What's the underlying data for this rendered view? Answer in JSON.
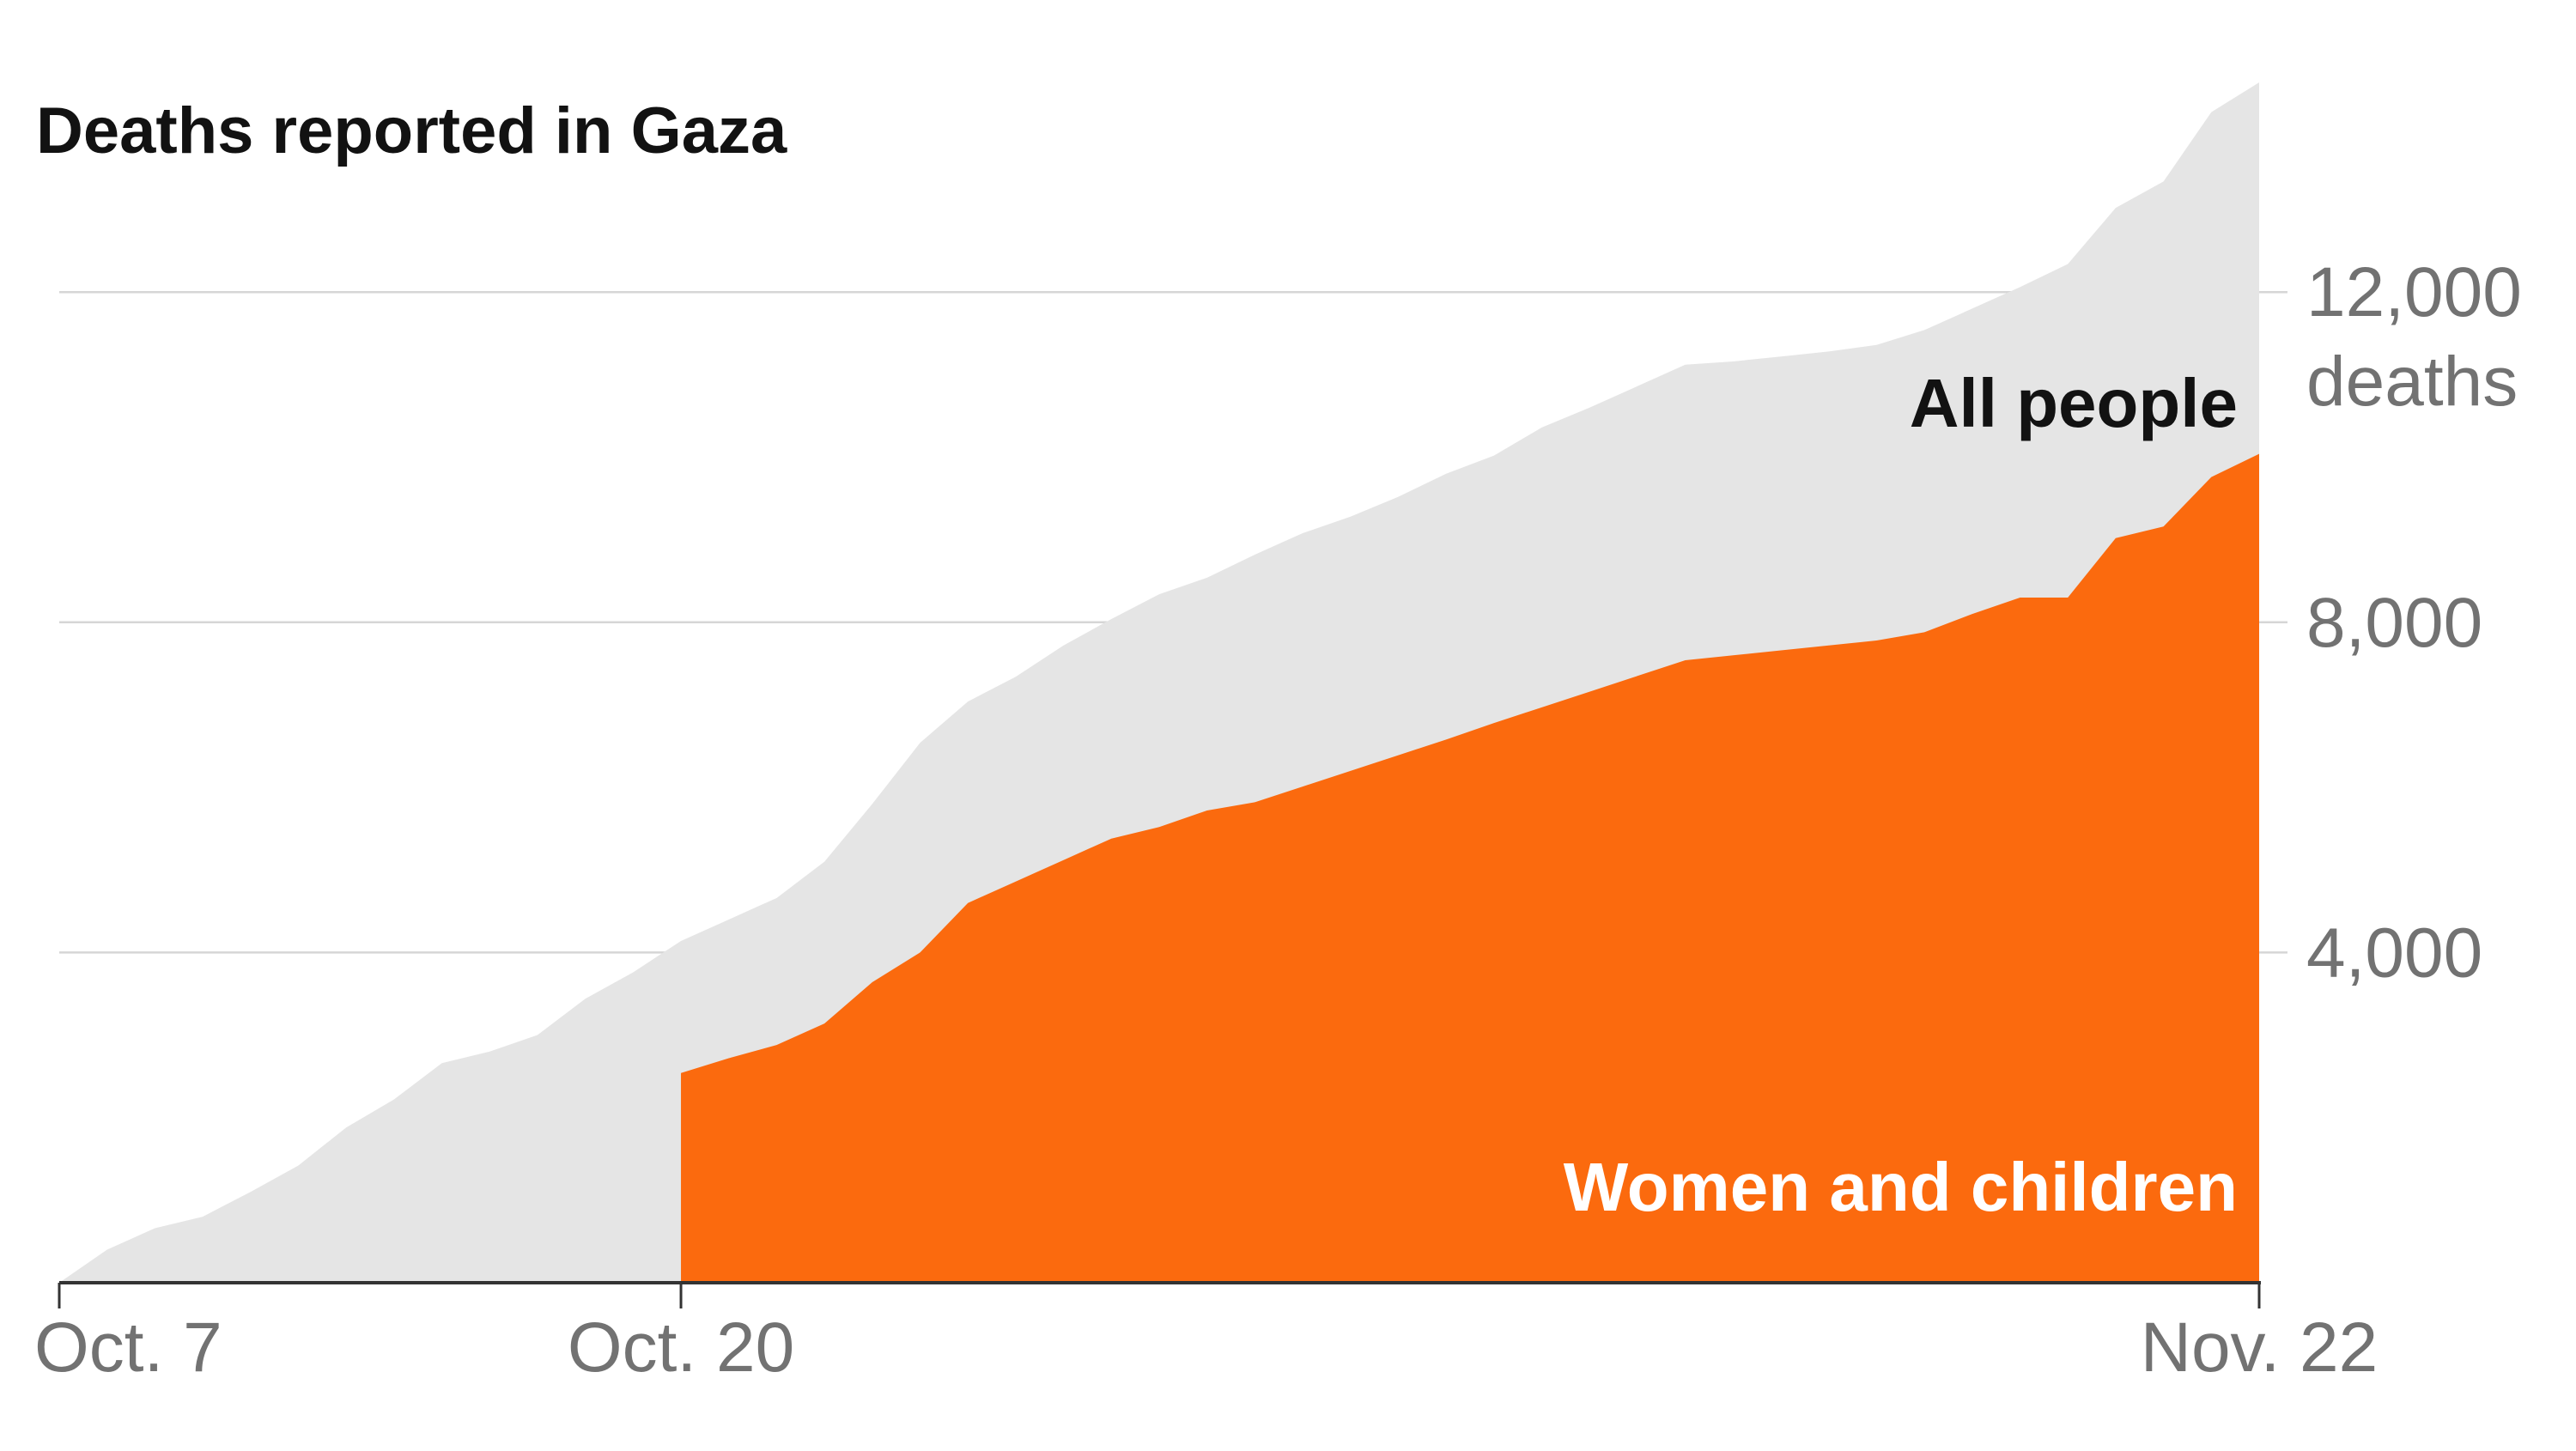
{
  "chart_data": {
    "type": "area",
    "title": "Deaths reported in Gaza",
    "xlabel": "",
    "ylabel": "deaths",
    "ylim": [
      0,
      14540
    ],
    "y_ticks": [
      {
        "value": 4000,
        "label": "4,000"
      },
      {
        "value": 8000,
        "label": "8,000"
      },
      {
        "value": 12000,
        "label": "12,000"
      }
    ],
    "y_unit_label": "deaths",
    "x_ticks": [
      {
        "date": "Oct. 7",
        "label": "Oct. 7"
      },
      {
        "date": "Oct. 20",
        "label": "Oct. 20"
      },
      {
        "date": "Nov. 22",
        "label": "Nov. 22"
      }
    ],
    "grid": true,
    "x": [
      "Oct. 7",
      "Oct. 8",
      "Oct. 9",
      "Oct. 10",
      "Oct. 11",
      "Oct. 12",
      "Oct. 13",
      "Oct. 14",
      "Oct. 15",
      "Oct. 16",
      "Oct. 17",
      "Oct. 18",
      "Oct. 19",
      "Oct. 20",
      "Oct. 21",
      "Oct. 22",
      "Oct. 23",
      "Oct. 24",
      "Oct. 25",
      "Oct. 26",
      "Oct. 27",
      "Oct. 28",
      "Oct. 29",
      "Oct. 30",
      "Oct. 31",
      "Nov. 1",
      "Nov. 2",
      "Nov. 3",
      "Nov. 4",
      "Nov. 5",
      "Nov. 6",
      "Nov. 7",
      "Nov. 8",
      "Nov. 9",
      "Nov. 10",
      "Nov. 11",
      "Nov. 12",
      "Nov. 13",
      "Nov. 14",
      "Nov. 15",
      "Nov. 16",
      "Nov. 17",
      "Nov. 18",
      "Nov. 19",
      "Nov. 20",
      "Nov. 21",
      "Nov. 22"
    ],
    "series": [
      {
        "name": "All people",
        "color": "#e5e5e5",
        "label_color": "#121212",
        "values": [
          0,
          400,
          660,
          800,
          1100,
          1420,
          1880,
          2220,
          2660,
          2800,
          3000,
          3440,
          3760,
          4140,
          4400,
          4660,
          5100,
          5800,
          6540,
          7040,
          7340,
          7720,
          8040,
          8340,
          8540,
          8820,
          9080,
          9280,
          9520,
          9800,
          10020,
          10360,
          10600,
          10860,
          11120,
          11160,
          11220,
          11280,
          11360,
          11540,
          11800,
          12060,
          12340,
          13020,
          13340,
          14180,
          14540
        ]
      },
      {
        "name": "Women and children",
        "color": "#fb6a0e",
        "label_color": "#ffffff",
        "values": [
          null,
          null,
          null,
          null,
          null,
          null,
          null,
          null,
          null,
          null,
          null,
          null,
          null,
          2540,
          2720,
          2880,
          3140,
          3640,
          4000,
          4600,
          4860,
          5120,
          5380,
          5520,
          5720,
          5820,
          6010,
          6200,
          6390,
          6580,
          6780,
          6970,
          7160,
          7350,
          7540,
          7600,
          7660,
          7720,
          7780,
          7880,
          8100,
          8300,
          8300,
          9020,
          9160,
          9760,
          10040
        ]
      }
    ]
  }
}
